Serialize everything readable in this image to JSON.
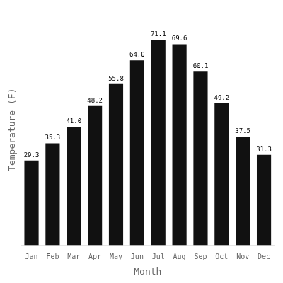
{
  "chart_data": {
    "type": "bar",
    "categories": [
      "Jan",
      "Feb",
      "Mar",
      "Apr",
      "May",
      "Jun",
      "Jul",
      "Aug",
      "Sep",
      "Oct",
      "Nov",
      "Dec"
    ],
    "values": [
      29.3,
      35.3,
      41.0,
      48.2,
      55.8,
      64.0,
      71.1,
      69.6,
      60.1,
      49.2,
      37.5,
      31.3
    ],
    "value_labels": [
      "29.3",
      "35.3",
      "41.0",
      "48.2",
      "55.8",
      "64.0",
      "71.1",
      "69.6",
      "60.1",
      "49.2",
      "37.5",
      "31.3"
    ],
    "color": "#111111",
    "x_label": "Month",
    "y_label": "Temperature (F)",
    "ylim": [
      0,
      80
    ],
    "yticks": [],
    "tick_labels": "x",
    "grid": false,
    "data_labels": true
  }
}
